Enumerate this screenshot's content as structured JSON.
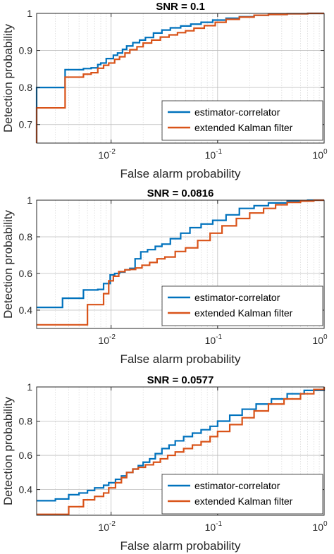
{
  "colors": {
    "estimator": "#0072BD",
    "ekf": "#D95319",
    "axis": "#262626",
    "grid": "#c8c8c8"
  },
  "chart_data": [
    {
      "type": "line",
      "title": "SNR = 0.1",
      "xlabel": "False alarm probability",
      "ylabel": "Detection probability",
      "xscale": "log",
      "xlim": [
        0.002,
        1
      ],
      "ylim": [
        0.65,
        1
      ],
      "xticks": [
        {
          "v": 0.01,
          "label": "10",
          "exp": "-2"
        },
        {
          "v": 0.1,
          "label": "10",
          "exp": "-1"
        },
        {
          "v": 1,
          "label": "10",
          "exp": "0"
        }
      ],
      "yticks": [
        0.7,
        0.8,
        0.9,
        1
      ],
      "ytick_labels": [
        "0.7",
        "0.8",
        "0.9",
        "1"
      ],
      "grid": true,
      "legend": "bottom-right",
      "series": [
        {
          "name": "estimator-correlator",
          "color": "#0072BD",
          "x": [
            0.002,
            0.002,
            0.0037,
            0.0037,
            0.0055,
            0.0065,
            0.0075,
            0.008,
            0.009,
            0.0105,
            0.0115,
            0.0128,
            0.014,
            0.016,
            0.0185,
            0.021,
            0.025,
            0.03,
            0.036,
            0.045,
            0.056,
            0.07,
            0.09,
            0.12,
            0.16,
            0.22,
            0.3,
            0.45,
            0.7,
            1
          ],
          "y": [
            0.65,
            0.8,
            0.803,
            0.848,
            0.851,
            0.853,
            0.862,
            0.866,
            0.878,
            0.887,
            0.893,
            0.903,
            0.912,
            0.921,
            0.928,
            0.935,
            0.947,
            0.955,
            0.961,
            0.966,
            0.971,
            0.976,
            0.982,
            0.987,
            0.991,
            0.995,
            0.997,
            0.999,
            1.0,
            1.0
          ]
        },
        {
          "name": "extended Kalman filter",
          "color": "#D95319",
          "x": [
            0.002,
            0.002,
            0.0037,
            0.0037,
            0.0055,
            0.0065,
            0.0075,
            0.0085,
            0.0095,
            0.0108,
            0.012,
            0.0135,
            0.015,
            0.0175,
            0.02,
            0.024,
            0.029,
            0.035,
            0.042,
            0.05,
            0.06,
            0.075,
            0.095,
            0.12,
            0.16,
            0.22,
            0.3,
            0.45,
            0.7,
            1
          ],
          "y": [
            0.65,
            0.745,
            0.748,
            0.828,
            0.836,
            0.84,
            0.852,
            0.86,
            0.866,
            0.876,
            0.883,
            0.893,
            0.902,
            0.91,
            0.92,
            0.928,
            0.936,
            0.942,
            0.948,
            0.953,
            0.96,
            0.967,
            0.976,
            0.984,
            0.99,
            0.995,
            0.997,
            0.999,
            1.0,
            1.0
          ]
        }
      ]
    },
    {
      "type": "line",
      "title": "SNR = 0.0816",
      "xlabel": "False alarm probability",
      "ylabel": "Detection probability",
      "xscale": "log",
      "xlim": [
        0.002,
        1
      ],
      "ylim": [
        0.3,
        1
      ],
      "xticks": [
        {
          "v": 0.01,
          "label": "10",
          "exp": "-2"
        },
        {
          "v": 0.1,
          "label": "10",
          "exp": "-1"
        },
        {
          "v": 1,
          "label": "10",
          "exp": "0"
        }
      ],
      "yticks": [
        0.4,
        0.6,
        0.8,
        1
      ],
      "ytick_labels": [
        "0.4",
        "0.6",
        "0.8",
        "1"
      ],
      "grid": true,
      "legend": "bottom-right",
      "series": [
        {
          "name": "estimator-correlator",
          "color": "#0072BD",
          "x": [
            0.002,
            0.0035,
            0.0035,
            0.0055,
            0.0055,
            0.0075,
            0.0085,
            0.0085,
            0.0098,
            0.0098,
            0.0108,
            0.012,
            0.0135,
            0.015,
            0.0168,
            0.0168,
            0.019,
            0.022,
            0.026,
            0.03,
            0.036,
            0.045,
            0.055,
            0.07,
            0.09,
            0.12,
            0.16,
            0.22,
            0.3,
            0.45,
            0.7,
            1
          ],
          "y": [
            0.415,
            0.418,
            0.465,
            0.47,
            0.51,
            0.513,
            0.52,
            0.545,
            0.548,
            0.592,
            0.6,
            0.608,
            0.62,
            0.628,
            0.64,
            0.68,
            0.718,
            0.73,
            0.748,
            0.76,
            0.79,
            0.82,
            0.85,
            0.87,
            0.89,
            0.92,
            0.955,
            0.97,
            0.985,
            0.995,
            1.0,
            1.0
          ]
        },
        {
          "name": "extended Kalman filter",
          "color": "#D95319",
          "x": [
            0.002,
            0.006,
            0.006,
            0.0085,
            0.0085,
            0.0095,
            0.0095,
            0.0105,
            0.0118,
            0.0135,
            0.015,
            0.017,
            0.0195,
            0.023,
            0.027,
            0.032,
            0.04,
            0.05,
            0.065,
            0.085,
            0.11,
            0.15,
            0.2,
            0.27,
            0.35,
            0.45,
            0.6,
            0.8,
            1
          ],
          "y": [
            0.32,
            0.322,
            0.43,
            0.435,
            0.49,
            0.495,
            0.56,
            0.585,
            0.61,
            0.62,
            0.622,
            0.63,
            0.645,
            0.66,
            0.68,
            0.69,
            0.72,
            0.74,
            0.78,
            0.82,
            0.86,
            0.9,
            0.93,
            0.955,
            0.975,
            0.988,
            0.995,
            1.0,
            1.0
          ]
        }
      ]
    },
    {
      "type": "line",
      "title": "SNR = 0.0577",
      "xlabel": "False alarm probability",
      "ylabel": "Detection probability",
      "xscale": "log",
      "xlim": [
        0.002,
        1
      ],
      "ylim": [
        0.25,
        1
      ],
      "xticks": [
        {
          "v": 0.01,
          "label": "10",
          "exp": "-2"
        },
        {
          "v": 0.1,
          "label": "10",
          "exp": "-1"
        },
        {
          "v": 1,
          "label": "10",
          "exp": "0"
        }
      ],
      "yticks": [
        0.4,
        0.6,
        0.8,
        1
      ],
      "ytick_labels": [
        "0.4",
        "0.6",
        "0.8",
        "1"
      ],
      "grid": true,
      "legend": "bottom-right",
      "series": [
        {
          "name": "estimator-correlator",
          "color": "#0072BD",
          "x": [
            0.002,
            0.003,
            0.004,
            0.005,
            0.006,
            0.007,
            0.0085,
            0.0095,
            0.011,
            0.0125,
            0.014,
            0.016,
            0.018,
            0.02,
            0.023,
            0.026,
            0.03,
            0.035,
            0.04,
            0.048,
            0.058,
            0.07,
            0.085,
            0.1,
            0.13,
            0.17,
            0.23,
            0.32,
            0.45,
            0.65,
            1
          ],
          "y": [
            0.335,
            0.345,
            0.37,
            0.38,
            0.395,
            0.41,
            0.425,
            0.44,
            0.46,
            0.48,
            0.5,
            0.52,
            0.54,
            0.56,
            0.58,
            0.61,
            0.64,
            0.66,
            0.685,
            0.71,
            0.73,
            0.75,
            0.77,
            0.8,
            0.835,
            0.87,
            0.9,
            0.93,
            0.96,
            0.98,
            1.0
          ]
        },
        {
          "name": "extended Kalman filter",
          "color": "#D95319",
          "x": [
            0.002,
            0.004,
            0.004,
            0.0055,
            0.007,
            0.0085,
            0.0095,
            0.011,
            0.0125,
            0.014,
            0.016,
            0.018,
            0.021,
            0.025,
            0.029,
            0.034,
            0.04,
            0.048,
            0.058,
            0.07,
            0.085,
            0.1,
            0.13,
            0.17,
            0.22,
            0.3,
            0.42,
            0.6,
            0.8,
            1
          ],
          "y": [
            0.255,
            0.258,
            0.3,
            0.34,
            0.36,
            0.38,
            0.41,
            0.44,
            0.47,
            0.5,
            0.52,
            0.53,
            0.545,
            0.56,
            0.58,
            0.6,
            0.62,
            0.64,
            0.66,
            0.68,
            0.71,
            0.74,
            0.78,
            0.82,
            0.86,
            0.9,
            0.93,
            0.96,
            0.985,
            1.0
          ]
        }
      ]
    }
  ]
}
